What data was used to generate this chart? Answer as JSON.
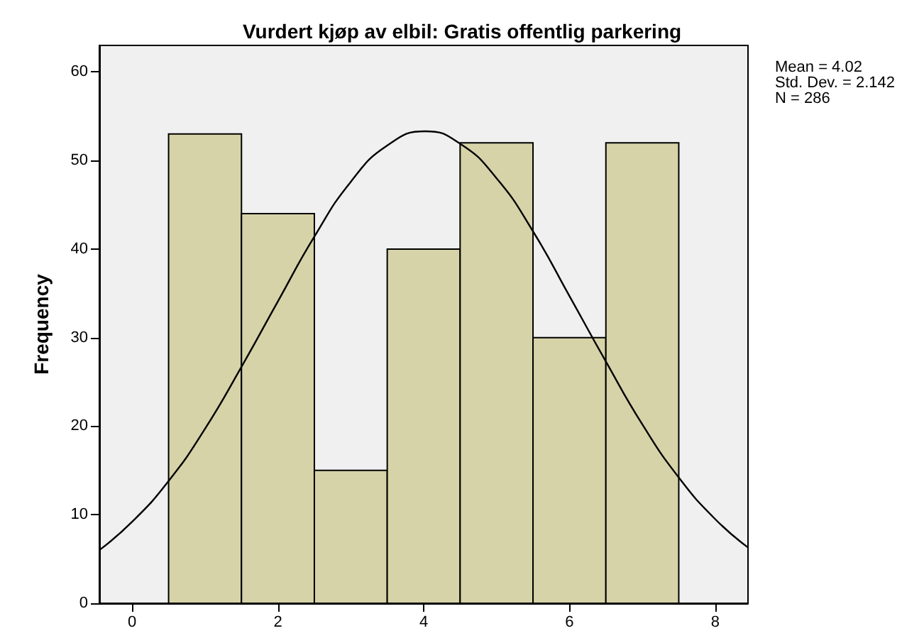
{
  "chart_data": {
    "type": "histogram",
    "title": "Vurdert kjøp av elbil: Gratis offentlig parkering",
    "ylabel": "Frequency",
    "bins": [
      0.5,
      1.5,
      2.5,
      3.5,
      4.5,
      5.5,
      6.5,
      7.5
    ],
    "values": [
      53,
      44,
      15,
      40,
      52,
      30,
      52
    ],
    "color": "#d6d3a8",
    "series": [
      {
        "type": "line",
        "color": "#000000",
        "x": [
          -0.45,
          0,
          0.5,
          1,
          1.5,
          2,
          2.5,
          3,
          3.5,
          4.02,
          4.5,
          5,
          5.5,
          6,
          6.5,
          7,
          7.5,
          8,
          8.45
        ],
        "values": [
          6.0,
          9.2,
          13.8,
          19.7,
          26.7,
          34.1,
          41.4,
          47.6,
          51.7,
          53.3,
          51.9,
          48.0,
          42.0,
          34.7,
          27.3,
          20.2,
          14.2,
          9.5,
          6.3
        ]
      }
    ],
    "marker": "none",
    "line_style": "solid",
    "xlim": [
      -0.45,
      8.45
    ],
    "xticks": [
      0,
      2,
      4,
      6,
      8
    ],
    "ylim": [
      0,
      63
    ],
    "yticks": [
      0,
      10,
      20,
      30,
      40,
      50,
      60
    ],
    "grid": false,
    "annotations": [
      "Mean = 4.02",
      "Std. Dev. = 2.142",
      "N = 286"
    ]
  }
}
